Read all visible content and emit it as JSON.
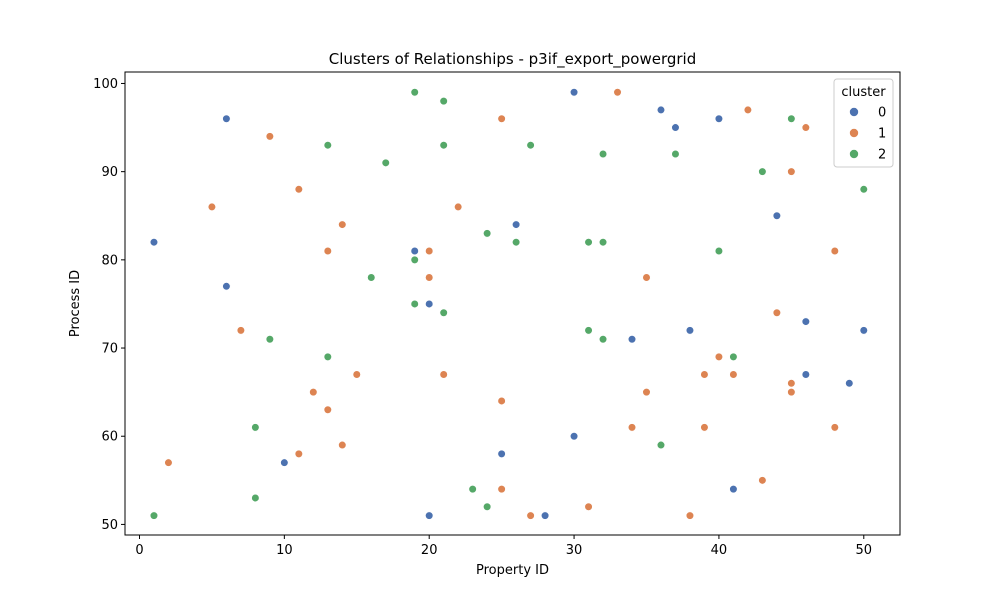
{
  "chart_data": {
    "type": "scatter",
    "title": "Clusters of Relationships - p3if_export_powergrid",
    "xlabel": "Property ID",
    "ylabel": "Process ID",
    "xlim": [
      -1,
      52.5
    ],
    "ylim": [
      48.8,
      101.3
    ],
    "x_ticks": [
      0,
      10,
      20,
      30,
      40,
      50
    ],
    "y_ticks": [
      50,
      60,
      70,
      80,
      90,
      100
    ],
    "grid": false,
    "legend": {
      "title": "cluster",
      "placement": "top-right"
    },
    "series": [
      {
        "name": "0",
        "color": "#4c72b0",
        "points": [
          [
            1,
            82
          ],
          [
            6,
            96
          ],
          [
            6,
            77
          ],
          [
            10,
            57
          ],
          [
            19,
            81
          ],
          [
            20,
            75
          ],
          [
            20,
            51
          ],
          [
            25,
            58
          ],
          [
            26,
            84
          ],
          [
            28,
            51
          ],
          [
            30,
            99
          ],
          [
            30,
            60
          ],
          [
            34,
            71
          ],
          [
            36,
            97
          ],
          [
            37,
            95
          ],
          [
            38,
            72
          ],
          [
            40,
            96
          ],
          [
            41,
            54
          ],
          [
            44,
            85
          ],
          [
            46,
            73
          ],
          [
            46,
            67
          ],
          [
            49,
            66
          ],
          [
            50,
            72
          ]
        ]
      },
      {
        "name": "1",
        "color": "#dd8452",
        "points": [
          [
            2,
            57
          ],
          [
            5,
            86
          ],
          [
            7,
            72
          ],
          [
            9,
            94
          ],
          [
            11,
            88
          ],
          [
            11,
            58
          ],
          [
            12,
            65
          ],
          [
            13,
            81
          ],
          [
            13,
            63
          ],
          [
            14,
            84
          ],
          [
            14,
            59
          ],
          [
            15,
            67
          ],
          [
            20,
            81
          ],
          [
            20,
            78
          ],
          [
            21,
            67
          ],
          [
            22,
            86
          ],
          [
            25,
            96
          ],
          [
            25,
            64
          ],
          [
            25,
            54
          ],
          [
            27,
            51
          ],
          [
            31,
            52
          ],
          [
            33,
            99
          ],
          [
            34,
            61
          ],
          [
            35,
            78
          ],
          [
            35,
            65
          ],
          [
            38,
            51
          ],
          [
            39,
            67
          ],
          [
            39,
            61
          ],
          [
            40,
            69
          ],
          [
            41,
            67
          ],
          [
            42,
            97
          ],
          [
            43,
            55
          ],
          [
            44,
            74
          ],
          [
            45,
            90
          ],
          [
            45,
            66
          ],
          [
            45,
            65
          ],
          [
            46,
            95
          ],
          [
            48,
            81
          ],
          [
            48,
            61
          ]
        ]
      },
      {
        "name": "2",
        "color": "#55a868",
        "points": [
          [
            1,
            51
          ],
          [
            8,
            61
          ],
          [
            8,
            53
          ],
          [
            9,
            71
          ],
          [
            13,
            93
          ],
          [
            13,
            69
          ],
          [
            16,
            78
          ],
          [
            17,
            91
          ],
          [
            19,
            99
          ],
          [
            19,
            80
          ],
          [
            19,
            75
          ],
          [
            21,
            98
          ],
          [
            21,
            93
          ],
          [
            21,
            74
          ],
          [
            23,
            54
          ],
          [
            24,
            83
          ],
          [
            24,
            52
          ],
          [
            26,
            82
          ],
          [
            27,
            93
          ],
          [
            31,
            82
          ],
          [
            31,
            72
          ],
          [
            32,
            92
          ],
          [
            32,
            82
          ],
          [
            32,
            71
          ],
          [
            36,
            59
          ],
          [
            37,
            92
          ],
          [
            40,
            81
          ],
          [
            41,
            69
          ],
          [
            43,
            90
          ],
          [
            45,
            96
          ],
          [
            50,
            88
          ]
        ]
      }
    ]
  }
}
